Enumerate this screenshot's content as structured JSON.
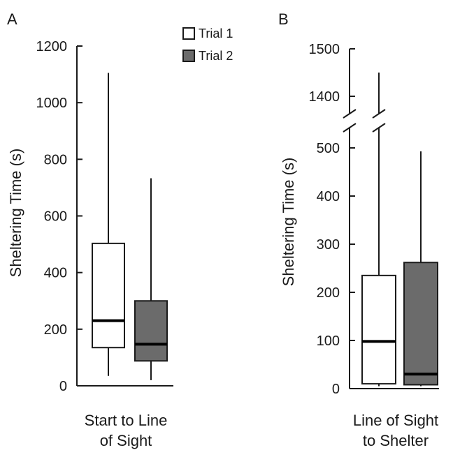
{
  "chart_data": [
    {
      "panel_label": "A",
      "type": "box",
      "ylabel": "Sheltering Time (s)",
      "xlabel": "Start to Line of Sight",
      "xlabel_lines": [
        "Start to Line",
        "of Sight"
      ],
      "ylim": [
        0,
        1200
      ],
      "yticks": [
        0,
        200,
        400,
        600,
        800,
        1000,
        1200
      ],
      "legend": {
        "placement": "top-right",
        "entries": [
          "Trial 1",
          "Trial 2"
        ]
      },
      "series": [
        {
          "name": "Trial 1",
          "color": "#ffffff",
          "min": 35,
          "q1": 135,
          "median": 230,
          "q3": 503,
          "max": 1105
        },
        {
          "name": "Trial 2",
          "color": "#6b6b6b",
          "min": 20,
          "q1": 88,
          "median": 147,
          "q3": 300,
          "max": 733
        }
      ]
    },
    {
      "panel_label": "B",
      "type": "box",
      "ylabel": "Sheltering Time (s)",
      "xlabel": "Line of Sight to Shelter",
      "xlabel_lines": [
        "Line of Sight",
        "to Shelter"
      ],
      "ylim": [
        0,
        1500
      ],
      "axis_break": [
        530,
        1350
      ],
      "yticks": [
        0,
        100,
        200,
        300,
        400,
        500,
        1400,
        1500
      ],
      "series": [
        {
          "name": "Trial 1",
          "color": "#ffffff",
          "min": 5,
          "q1": 10,
          "median": 98,
          "q3": 235,
          "max": 1450
        },
        {
          "name": "Trial 2",
          "color": "#6b6b6b",
          "min": 5,
          "q1": 8,
          "median": 30,
          "q3": 262,
          "max": 493
        }
      ]
    }
  ]
}
